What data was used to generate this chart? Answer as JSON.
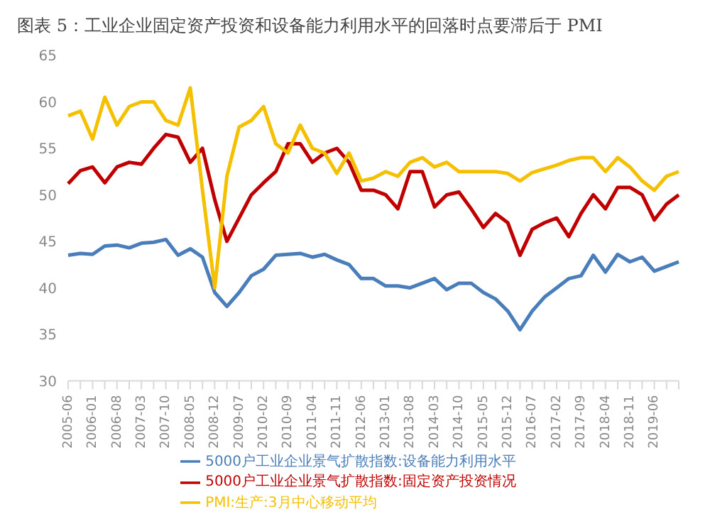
{
  "chart_data": {
    "type": "line",
    "title": "图表 5：工业企业固定资产投资和设备能力利用水平的回落时点要滞后于 PMI",
    "categories": [
      "2005-06",
      null,
      "2006-01",
      null,
      "2006-08",
      null,
      "2007-03",
      null,
      "2007-10",
      null,
      "2008-05",
      null,
      "2008-12",
      null,
      "2009-07",
      null,
      "2010-02",
      null,
      "2010-09",
      null,
      "2011-04",
      null,
      "2011-11",
      null,
      "2012-06",
      null,
      "2013-01",
      null,
      "2013-08",
      null,
      "2014-03",
      null,
      "2014-10",
      null,
      "2015-05",
      null,
      "2015-12",
      null,
      "2016-07",
      null,
      "2017-02",
      null,
      "2017-09",
      null,
      "2018-04",
      null,
      "2018-11",
      null,
      "2019-06",
      null,
      null
    ],
    "series": [
      {
        "name": "5000户工业企业景气扩散指数:设备能力利用水平",
        "color": "#4a7ebb",
        "values": [
          43.5,
          43.7,
          43.6,
          44.5,
          44.6,
          44.3,
          44.8,
          44.9,
          45.2,
          43.5,
          44.2,
          43.3,
          39.5,
          38,
          39.5,
          41.3,
          42,
          43.5,
          43.6,
          43.7,
          43.3,
          43.6,
          43,
          42.5,
          41,
          41,
          40.2,
          40.2,
          40,
          40.5,
          41,
          39.8,
          40.5,
          40.5,
          39.5,
          38.8,
          37.5,
          35.5,
          37.5,
          39,
          40,
          41,
          41.3,
          43.5,
          41.7,
          43.6,
          42.8,
          43.3,
          41.8,
          42.3,
          42.8
        ]
      },
      {
        "name": "5000户工业企业景气扩散指数:固定资产投资情况",
        "color": "#c00000",
        "values": [
          51.2,
          52.6,
          53,
          51.3,
          53,
          53.5,
          53.3,
          55,
          56.5,
          56.2,
          53.5,
          55,
          49.5,
          45,
          47.5,
          50,
          51.3,
          52.5,
          55.5,
          55.5,
          53.5,
          54.5,
          55,
          53.5,
          50.5,
          50.5,
          50,
          48.5,
          52.5,
          52.5,
          48.7,
          50,
          50.3,
          48.5,
          46.5,
          48,
          47,
          43.5,
          46.3,
          47,
          47.5,
          45.5,
          48,
          50,
          48.5,
          50.8,
          50.8,
          50,
          47.3,
          49,
          50
        ]
      },
      {
        "name": "PMI:生产:3月中心移动平均",
        "color": "#f5c000",
        "values": [
          58.5,
          59,
          56,
          60.5,
          57.5,
          59.5,
          60,
          60,
          58,
          57.5,
          61.5,
          50.5,
          40,
          52,
          57.3,
          58,
          59.5,
          55.5,
          54.5,
          57.5,
          55,
          54.5,
          52.3,
          54.5,
          51.5,
          51.8,
          52.5,
          52,
          53.5,
          54,
          53,
          53.5,
          52.5,
          52.5,
          52.5,
          52.5,
          52.3,
          51.5,
          52.4,
          52.8,
          53.2,
          53.7,
          54,
          54,
          52.5,
          54,
          53,
          51.5,
          50.5,
          52,
          52.5
        ]
      }
    ],
    "ylim": [
      30,
      65
    ],
    "yticks": [
      30,
      35,
      40,
      45,
      50,
      55,
      60,
      65
    ],
    "grid": false,
    "legend": "bottom",
    "marker": "none",
    "line_style": "solid"
  }
}
